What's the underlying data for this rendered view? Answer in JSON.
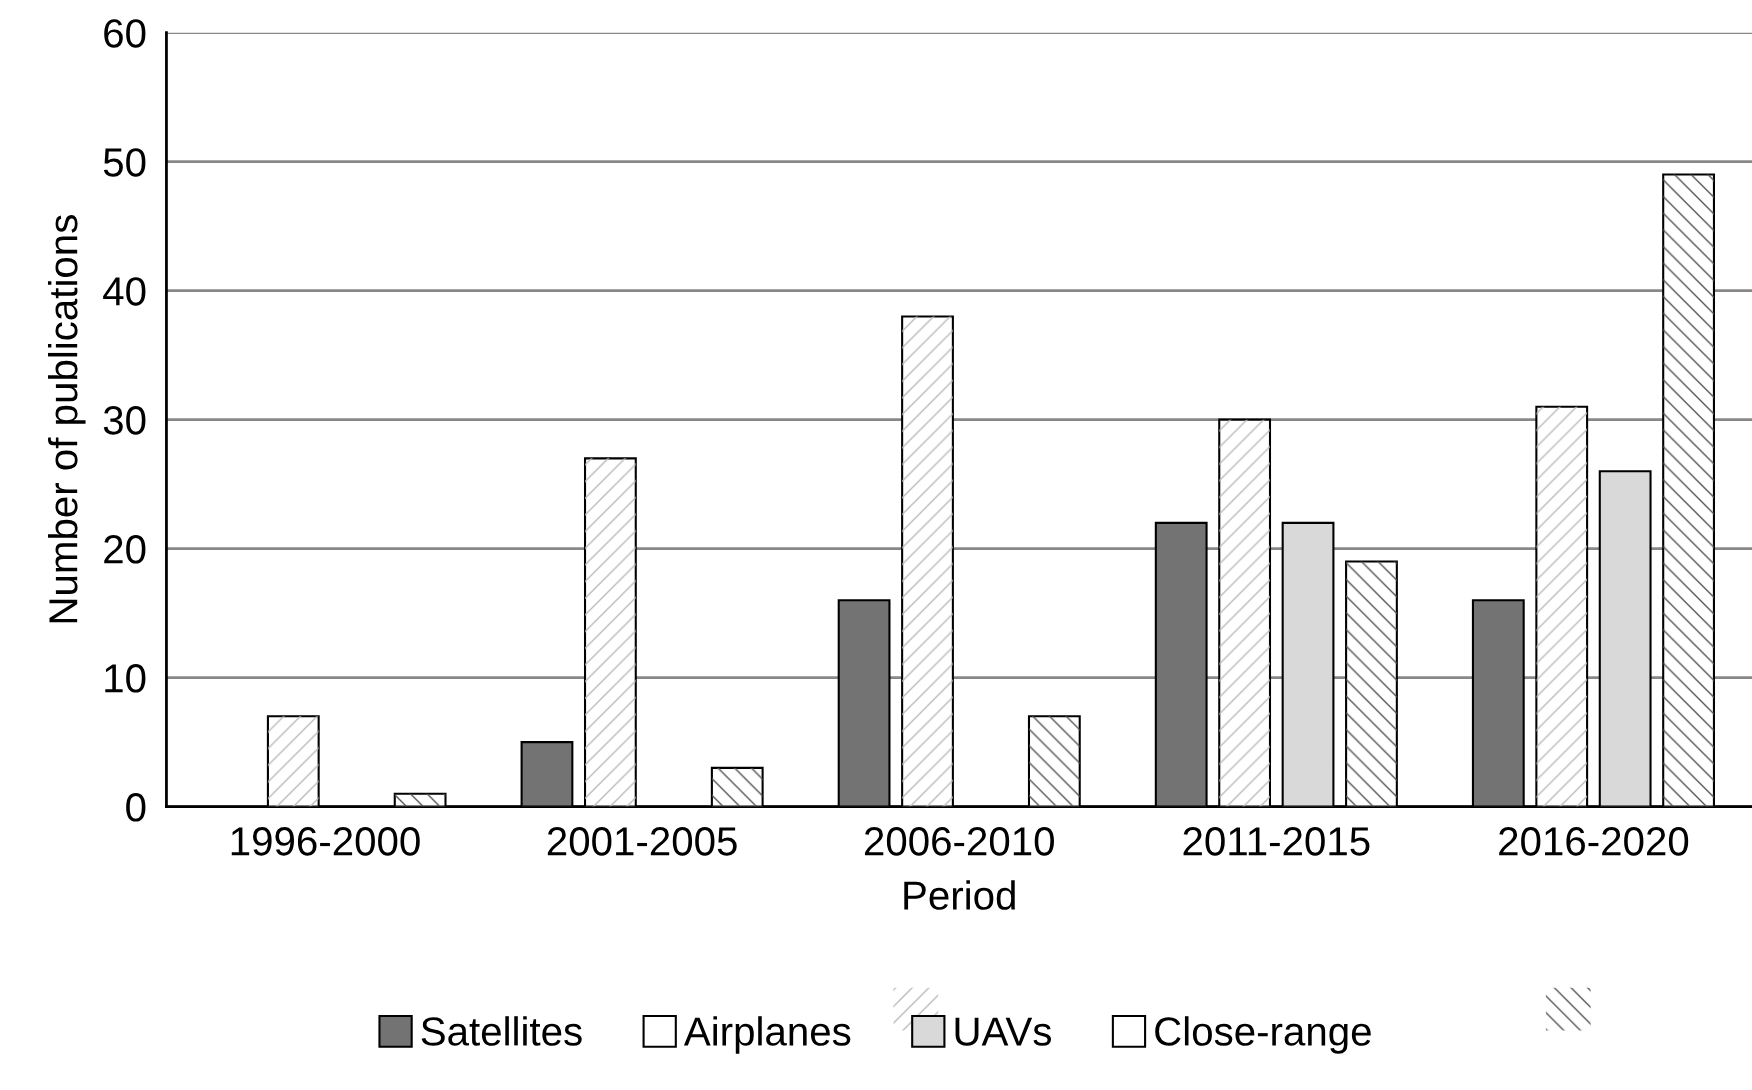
{
  "chart_data": {
    "type": "bar",
    "xlabel": "Period",
    "ylabel": "Number of publications",
    "categories": [
      "1996-2000",
      "2001-2005",
      "2006-2010",
      "2011-2015",
      "2016-2020"
    ],
    "series": [
      {
        "name": "Satellites",
        "color": "#737373",
        "values": [
          null,
          5,
          16,
          22,
          16
        ]
      },
      {
        "name": "Airplanes",
        "color": "#ffffff",
        "values": [
          7,
          27,
          38,
          30,
          31
        ]
      },
      {
        "name": "UAVs",
        "color": "#d9d9d9",
        "values": [
          null,
          null,
          null,
          22,
          26
        ]
      },
      {
        "name": "Close-range",
        "color": "#ffffff",
        "values": [
          1,
          3,
          7,
          19,
          49
        ]
      }
    ],
    "ylim": [
      0,
      60
    ],
    "yticks": [
      0,
      10,
      20,
      30,
      40,
      50,
      60
    ],
    "grid": "y",
    "legend": "bottom"
  }
}
